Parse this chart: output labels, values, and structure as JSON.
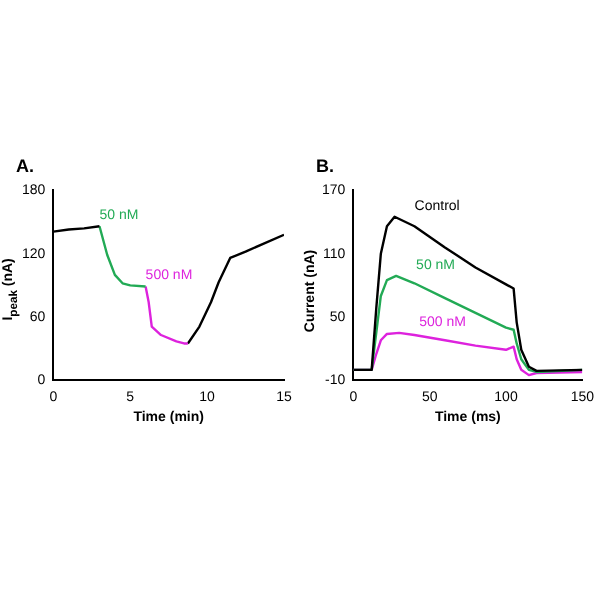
{
  "chart_data": [
    {
      "type": "line",
      "title": "A.",
      "xlabel": "Time (min)",
      "ylabel": "I$_{peak}$ (nA)",
      "xlim": [
        0,
        15
      ],
      "xticks": [
        0,
        5,
        10,
        15
      ],
      "ylim": [
        0,
        180
      ],
      "yticks": [
        0,
        60,
        120,
        180
      ],
      "grid": false,
      "legend": false,
      "marker": "none",
      "series": [
        {
          "color": "#000000",
          "x": [
            0,
            1,
            2,
            3
          ],
          "values": [
            141,
            143,
            144,
            146
          ]
        },
        {
          "name": "50 nM",
          "color": "#22aa55",
          "x": [
            3,
            3.5,
            4,
            4.5,
            5,
            6
          ],
          "values": [
            146,
            119,
            100,
            92,
            90,
            89
          ]
        },
        {
          "name": "500 nM",
          "color": "#dd22dd",
          "x": [
            6,
            6.2,
            6.4,
            7,
            8,
            8.5,
            8.75
          ],
          "values": [
            89,
            74,
            51,
            43,
            37,
            35,
            35
          ]
        },
        {
          "color": "#000000",
          "x": [
            8.75,
            9.5,
            10.25,
            10.75,
            11.5,
            12.5,
            15
          ],
          "values": [
            35,
            51,
            74,
            93,
            116,
            122,
            138
          ]
        }
      ]
    },
    {
      "type": "line",
      "title": "B.",
      "xlabel": "Time (ms)",
      "ylabel": "Current (nA)",
      "xlim": [
        0,
        150
      ],
      "xticks": [
        0,
        50,
        100,
        150
      ],
      "ylim": [
        -10,
        170
      ],
      "yticks": [
        -10,
        50,
        110,
        170
      ],
      "grid": false,
      "legend": false,
      "marker": "none",
      "series": [
        {
          "name": "Control",
          "color": "#000000",
          "x": [
            0,
            10,
            12,
            15,
            18,
            22,
            27,
            40,
            60,
            80,
            100,
            105,
            107,
            110,
            115,
            120,
            150
          ],
          "values": [
            0,
            0,
            0,
            58,
            110,
            136,
            145,
            136,
            116,
            97,
            81,
            77,
            45,
            19,
            3,
            -1,
            0
          ]
        },
        {
          "name": "50 nM",
          "color": "#22aa55",
          "x": [
            0,
            10,
            12,
            15,
            18,
            22,
            28,
            40,
            60,
            80,
            100,
            105,
            107,
            110,
            115,
            120,
            150
          ],
          "values": [
            0,
            0,
            0,
            35,
            70,
            85,
            89,
            82,
            68,
            54,
            40,
            38,
            25,
            10,
            0,
            -2,
            0
          ]
        },
        {
          "name": "500 nM",
          "color": "#dd22dd",
          "x": [
            0,
            10,
            12,
            15,
            18,
            22,
            30,
            40,
            60,
            80,
            100,
            105,
            107,
            110,
            115,
            120,
            150
          ],
          "values": [
            0,
            0,
            0,
            15,
            28,
            34,
            35,
            33,
            28,
            23,
            19,
            22,
            10,
            0,
            -5,
            -3,
            -2
          ]
        }
      ]
    }
  ]
}
